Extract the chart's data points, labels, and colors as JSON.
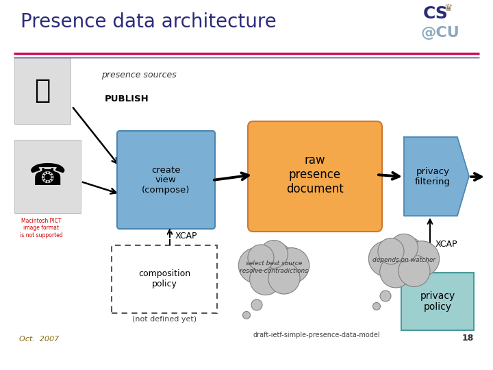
{
  "title": "Presence data architecture",
  "bg_color": "#ffffff",
  "title_color": "#2B2B7A",
  "title_fontsize": 20,
  "header_line1_color": "#CC1155",
  "header_line2_color": "#2B2B7A",
  "presence_sources_text": "presence sources",
  "publish_text": "PUBLISH",
  "create_view_text": "create\nview\n(compose)",
  "raw_presence_text": "raw\npresence\ndocument",
  "privacy_filtering_text": "privacy\nfiltering",
  "xcap1_text": "XCAP",
  "xcap2_text": "XCAP",
  "composition_policy_text": "composition\npolicy",
  "not_defined_text": "(not defined yet)",
  "select_text": "select best source\nresolve contradictions",
  "depends_text": "depends on watcher",
  "privacy_policy_text": "privacy\npolicy",
  "draft_text": "draft-ietf-simple-presence-data-model",
  "oct_text": "Oct.  2007",
  "page_text": "18",
  "create_view_box_color": "#7BAFD4",
  "raw_presence_box_color": "#F5A84A",
  "privacy_filtering_color": "#7BAFD4",
  "privacy_policy_color": "#9ECFCF",
  "cloud_color": "#C0C0C0",
  "cloud_edge_color": "#808080"
}
